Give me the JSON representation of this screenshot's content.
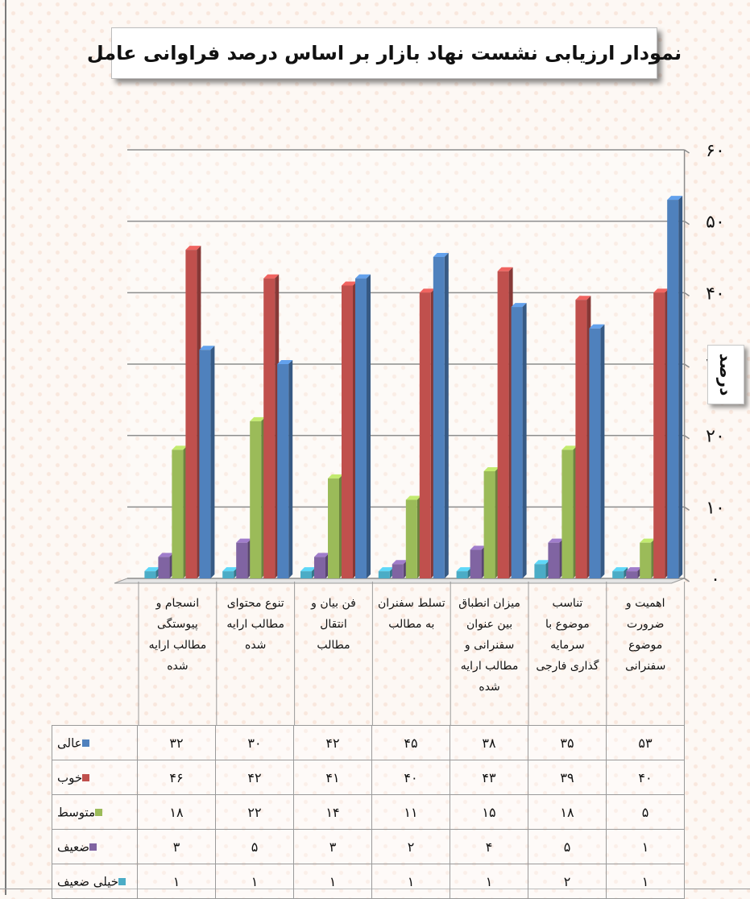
{
  "title": "نمودار ارزیابی نشست نهاد بازار بر اساس  درصد فراوانی عامل",
  "y_axis_label": "درصد",
  "chart_data": {
    "type": "bar",
    "title": "نمودار ارزیابی نشست نهاد بازار بر اساس  درصد فراوانی عامل",
    "ylabel": "درصد",
    "xlabel": "",
    "ylim": [
      0,
      60
    ],
    "y_ticks": [
      "۰",
      "۱۰",
      "۲۰",
      "۳۰",
      "۴۰",
      "۵۰",
      "۶۰"
    ],
    "grid": true,
    "legend": "table-left",
    "categories": [
      "انسجام و پیوستگی مطالب ارایه شده",
      "تنوع محتوای مطالب ارایه شده",
      "فن بیان و انتقال مطالب",
      "تسلط سفنران به مطالب",
      "میزان انطباق بین عنوان سفنرانی و مطالب ارایه شده",
      "تناسب موضوع با سرمایه گذاری فارجی",
      "اهمیت و ضرورت موضوع سفنرانی"
    ],
    "category_lines": [
      [
        "انسجام و",
        "پیوستگی",
        "مطالب ارایه",
        "شده"
      ],
      [
        "تنوع محتوای",
        "مطالب ارایه",
        "شده"
      ],
      [
        "فن بیان و",
        "انتقال",
        "مطالب"
      ],
      [
        "تسلط سفنران",
        "به مطالب"
      ],
      [
        "میزان انطباق",
        "بین عنوان",
        "سفنرانی و",
        "مطالب ارایه",
        "شده"
      ],
      [
        "تناسب",
        "موضوع با",
        "سرمایه",
        "گذاری فارجی"
      ],
      [
        "اهمیت  و",
        "ضرورت",
        "موضوع",
        "سفنرانی"
      ]
    ],
    "series": [
      {
        "name": "خیلی ضعیف",
        "color": "#4bacc6",
        "values": [
          1,
          1,
          1,
          1,
          1,
          2,
          1
        ],
        "labels": [
          "۱",
          "۱",
          "۱",
          "۱",
          "۱",
          "۲",
          "۱"
        ]
      },
      {
        "name": "ضعیف",
        "color": "#8064a2",
        "values": [
          3,
          5,
          3,
          2,
          4,
          5,
          1
        ],
        "labels": [
          "۳",
          "۵",
          "۳",
          "۲",
          "۴",
          "۵",
          "۱"
        ]
      },
      {
        "name": "متوسط",
        "color": "#9bbb59",
        "values": [
          18,
          22,
          14,
          11,
          15,
          18,
          5
        ],
        "labels": [
          "۱۸",
          "۲۲",
          "۱۴",
          "۱۱",
          "۱۵",
          "۱۸",
          "۵"
        ]
      },
      {
        "name": "خوب",
        "color": "#c0504d",
        "values": [
          46,
          42,
          41,
          40,
          43,
          39,
          40
        ],
        "labels": [
          "۴۶",
          "۴۲",
          "۴۱",
          "۴۰",
          "۴۳",
          "۳۹",
          "۴۰"
        ]
      },
      {
        "name": "عالی",
        "color": "#4f81bd",
        "values": [
          32,
          30,
          42,
          45,
          38,
          35,
          53
        ],
        "labels": [
          "۳۲",
          "۳۰",
          "۴۲",
          "۴۵",
          "۳۸",
          "۳۵",
          "۵۳"
        ]
      }
    ],
    "table_row_order": [
      "عالی",
      "خوب",
      "متوسط",
      "ضعیف",
      "خیلی ضعیف"
    ]
  }
}
